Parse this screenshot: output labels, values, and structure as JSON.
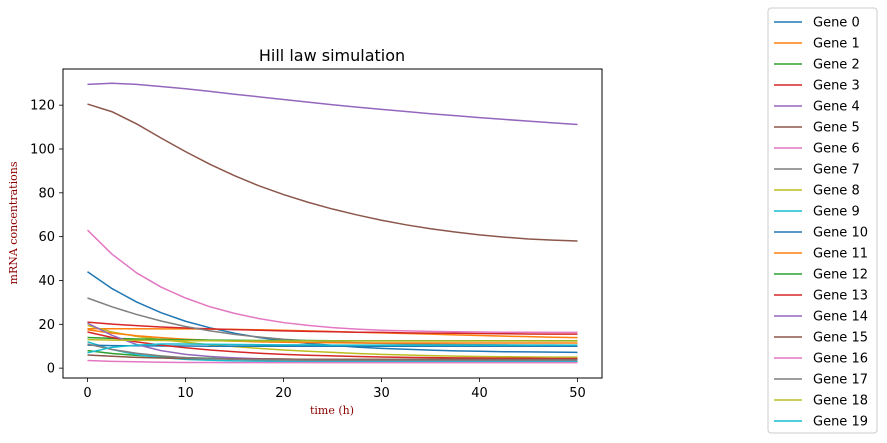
{
  "chart_data": {
    "type": "line",
    "title": "Hill law simulation",
    "xlabel": "time (h)",
    "ylabel": "mRNA concentrations",
    "xlim": [
      -2.5,
      52.5
    ],
    "ylim": [
      -4.5,
      136.5
    ],
    "xticks": [
      0,
      10,
      20,
      30,
      40,
      50
    ],
    "yticks": [
      0,
      20,
      40,
      60,
      80,
      100,
      120
    ],
    "grid": false,
    "legend_position": "outside-right",
    "x": [
      0,
      2.5,
      5,
      7.5,
      10,
      12.5,
      15,
      17.5,
      20,
      22.5,
      25,
      27.5,
      30,
      32.5,
      35,
      37.5,
      40,
      42.5,
      45,
      47.5,
      50
    ],
    "series": [
      {
        "name": "Gene 0",
        "color": "#1f77b4",
        "values": [
          44.0,
          36.3,
          30.2,
          25.3,
          21.4,
          18.4,
          15.9,
          14.0,
          12.5,
          11.3,
          10.4,
          9.6,
          9.0,
          8.6,
          8.2,
          7.9,
          7.7,
          7.5,
          7.4,
          7.3,
          7.2
        ]
      },
      {
        "name": "Gene 1",
        "color": "#ff7f0e",
        "values": [
          18.0,
          18.0,
          18.0,
          17.9,
          17.9,
          17.8,
          17.7,
          17.5,
          17.3,
          17.0,
          16.7,
          16.4,
          16.1,
          15.8,
          15.5,
          15.2,
          14.9,
          14.6,
          14.4,
          14.1,
          13.9
        ]
      },
      {
        "name": "Gene 2",
        "color": "#2ca02c",
        "values": [
          8.0,
          6.7,
          5.8,
          5.2,
          4.8,
          4.5,
          4.3,
          4.2,
          4.1,
          4.0,
          4.0,
          4.0,
          4.0,
          4.0,
          4.0,
          4.0,
          4.0,
          4.0,
          4.0,
          4.0,
          4.0
        ]
      },
      {
        "name": "Gene 3",
        "color": "#d62728",
        "values": [
          21.0,
          20.1,
          19.4,
          18.8,
          18.3,
          17.9,
          17.6,
          17.3,
          17.0,
          16.8,
          16.6,
          16.4,
          16.3,
          16.1,
          16.0,
          15.9,
          15.8,
          15.7,
          15.6,
          15.5,
          15.5
        ]
      },
      {
        "name": "Gene 4",
        "color": "#9467bd",
        "values": [
          129.5,
          130.0,
          129.5,
          128.5,
          127.5,
          126.3,
          125.0,
          123.8,
          122.6,
          121.4,
          120.2,
          119.1,
          118.1,
          117.1,
          116.1,
          115.2,
          114.3,
          113.5,
          112.7,
          111.9,
          111.2
        ]
      },
      {
        "name": "Gene 5",
        "color": "#8c564b",
        "values": [
          120.5,
          117.0,
          111.5,
          105.0,
          98.8,
          93.0,
          87.8,
          83.2,
          79.2,
          75.7,
          72.6,
          69.9,
          67.5,
          65.4,
          63.6,
          62.1,
          60.8,
          59.8,
          58.9,
          58.4,
          58.0
        ]
      },
      {
        "name": "Gene 6",
        "color": "#e377c2",
        "values": [
          63.0,
          52.0,
          43.5,
          37.0,
          32.0,
          28.0,
          25.0,
          22.6,
          20.8,
          19.5,
          18.5,
          17.8,
          17.3,
          17.0,
          16.8,
          16.6,
          16.5,
          16.4,
          16.4,
          16.3,
          16.3
        ]
      },
      {
        "name": "Gene 7",
        "color": "#7f7f7f",
        "values": [
          32.0,
          28.0,
          24.5,
          21.5,
          19.0,
          17.0,
          15.4,
          14.2,
          13.2,
          12.5,
          12.0,
          11.6,
          11.3,
          11.1,
          10.9,
          10.8,
          10.7,
          10.6,
          10.5,
          10.5,
          10.4
        ]
      },
      {
        "name": "Gene 8",
        "color": "#bcbd22",
        "values": [
          19.5,
          16.5,
          14.5,
          13.0,
          11.8,
          10.7,
          9.8,
          9.0,
          8.3,
          7.7,
          7.2,
          6.7,
          6.3,
          6.0,
          5.7,
          5.5,
          5.3,
          5.2,
          5.1,
          5.0,
          5.0
        ]
      },
      {
        "name": "Gene 9",
        "color": "#17becf",
        "values": [
          12.0,
          8.5,
          6.2,
          4.8,
          4.0,
          3.6,
          3.3,
          3.2,
          3.1,
          3.1,
          3.0,
          3.0,
          3.0,
          3.0,
          3.0,
          3.0,
          3.0,
          3.0,
          3.0,
          3.0,
          3.0
        ]
      },
      {
        "name": "Gene 10",
        "color": "#1f77b4",
        "values": [
          10.5,
          10.3,
          10.2,
          10.1,
          10.1,
          10.0,
          10.0,
          10.0,
          10.0,
          10.0,
          10.0,
          10.0,
          10.0,
          10.0,
          10.0,
          10.0,
          10.0,
          10.0,
          10.0,
          10.0,
          10.0
        ]
      },
      {
        "name": "Gene 11",
        "color": "#ff7f0e",
        "values": [
          17.5,
          16.0,
          14.8,
          13.9,
          13.2,
          12.7,
          12.3,
          12.0,
          11.8,
          11.7,
          11.6,
          11.5,
          11.5,
          11.5,
          11.5,
          11.5,
          11.5,
          11.5,
          11.5,
          11.5,
          11.5
        ]
      },
      {
        "name": "Gene 12",
        "color": "#2ca02c",
        "values": [
          14.0,
          13.6,
          13.3,
          13.1,
          12.9,
          12.8,
          12.7,
          12.6,
          12.6,
          12.6,
          12.5,
          12.5,
          12.5,
          12.5,
          12.5,
          12.5,
          12.5,
          12.5,
          12.5,
          12.5,
          12.5
        ]
      },
      {
        "name": "Gene 13",
        "color": "#d62728",
        "values": [
          16.5,
          14.0,
          12.0,
          10.5,
          9.3,
          8.3,
          7.5,
          6.8,
          6.3,
          5.9,
          5.6,
          5.3,
          5.1,
          4.9,
          4.8,
          4.7,
          4.6,
          4.5,
          4.5,
          4.4,
          4.4
        ]
      },
      {
        "name": "Gene 14",
        "color": "#9467bd",
        "values": [
          20.5,
          15.0,
          10.8,
          8.0,
          6.3,
          5.3,
          4.7,
          4.3,
          4.1,
          4.0,
          3.9,
          3.9,
          3.8,
          3.8,
          3.8,
          3.8,
          3.8,
          3.8,
          3.8,
          3.8,
          3.8
        ]
      },
      {
        "name": "Gene 15",
        "color": "#8c564b",
        "values": [
          6.0,
          5.4,
          4.9,
          4.6,
          4.4,
          4.3,
          4.2,
          4.1,
          4.1,
          4.0,
          4.0,
          4.0,
          4.0,
          4.0,
          4.0,
          4.0,
          4.0,
          4.0,
          4.0,
          4.0,
          4.0
        ]
      },
      {
        "name": "Gene 16",
        "color": "#e377c2",
        "values": [
          3.5,
          3.1,
          2.9,
          2.7,
          2.6,
          2.6,
          2.5,
          2.5,
          2.5,
          2.5,
          2.5,
          2.5,
          2.5,
          2.5,
          2.5,
          2.5,
          2.5,
          2.5,
          2.5,
          2.5,
          2.5
        ]
      },
      {
        "name": "Gene 17",
        "color": "#7f7f7f",
        "values": [
          11.0,
          8.5,
          6.8,
          5.6,
          4.8,
          4.3,
          4.0,
          3.8,
          3.7,
          3.6,
          3.6,
          3.6,
          3.6,
          3.6,
          3.6,
          3.6,
          3.6,
          3.6,
          3.6,
          3.6,
          3.6
        ]
      },
      {
        "name": "Gene 18",
        "color": "#bcbd22",
        "values": [
          13.0,
          12.8,
          12.7,
          12.6,
          12.5,
          12.5,
          12.4,
          12.4,
          12.4,
          12.4,
          12.4,
          12.4,
          12.4,
          12.4,
          12.4,
          12.4,
          12.4,
          12.4,
          12.4,
          12.4,
          12.4
        ]
      },
      {
        "name": "Gene 19",
        "color": "#17becf",
        "values": [
          7.0,
          9.5,
          10.5,
          11.0,
          11.0,
          10.9,
          10.8,
          10.7,
          10.6,
          10.6,
          10.5,
          10.5,
          10.5,
          10.5,
          10.5,
          10.5,
          10.5,
          10.5,
          10.5,
          10.5,
          10.5
        ]
      }
    ]
  }
}
